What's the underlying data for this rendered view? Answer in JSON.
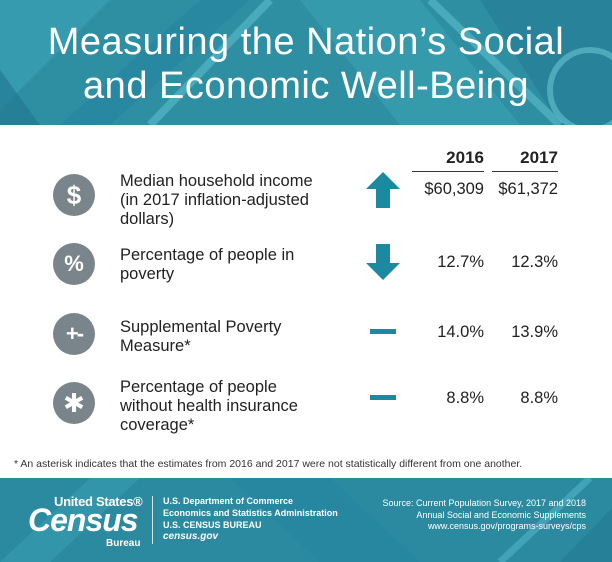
{
  "header": {
    "title_line1": "Measuring the Nation’s Social",
    "title_line2": "and Economic Well-Being"
  },
  "columns": {
    "year1": "2016",
    "year2": "2017"
  },
  "rows": [
    {
      "icon": "dollar-icon",
      "icon_glyph": "$",
      "label_lines": [
        "Median household income",
        "(in 2017 inflation-adjusted",
        "dollars)"
      ],
      "trend": "up",
      "v2016": "$60,309",
      "v2017": "$61,372"
    },
    {
      "icon": "percent-icon",
      "icon_glyph": "%",
      "label_lines": [
        "Percentage of people in",
        "poverty"
      ],
      "trend": "down",
      "v2016": "12.7%",
      "v2017": "12.3%"
    },
    {
      "icon": "plus-minus-icon",
      "icon_glyph": "+-",
      "label_lines": [
        "Supplemental Poverty",
        "Measure*"
      ],
      "trend": "flat",
      "v2016": "14.0%",
      "v2017": "13.9%"
    },
    {
      "icon": "medical-star-icon",
      "icon_glyph": "✱",
      "label_lines": [
        "Percentage of people",
        "without health insurance",
        "coverage*"
      ],
      "trend": "flat",
      "v2016": "8.8%",
      "v2017": "8.8%"
    }
  ],
  "footnote": "* An asterisk indicates that the estimates from 2016 and 2017 were not statistically different from one another.",
  "footer": {
    "logo_top": "United States®",
    "logo_main": "Census",
    "logo_sub": "Bureau",
    "dept_line1": "U.S. Department of Commerce",
    "dept_line2": "Economics and Statistics Administration",
    "dept_line3": "U.S. CENSUS BUREAU",
    "dept_site": "census.gov",
    "source_line1": "Source: Current Population Survey, 2017 and 2018",
    "source_line2": "Annual Social and Economic Supplements",
    "source_line3": "www.census.gov/programs-surveys/cps"
  },
  "colors": {
    "teal": "#2e8fa3",
    "trend": "#1b8aa0",
    "icon_bg": "#7a858b"
  }
}
